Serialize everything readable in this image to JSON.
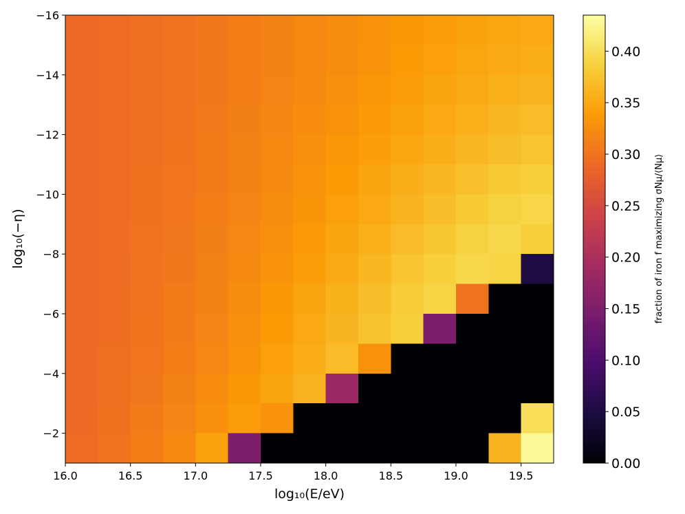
{
  "chart_data": {
    "type": "heatmap",
    "xlabel": "log₁₀(E/eV)",
    "ylabel": "log₁₀(−η)",
    "colorbar_label": "fraction of iron f maximizing σNμ/⟨Nμ⟩",
    "xlim": [
      16.0,
      19.75
    ],
    "ylim": [
      -1,
      -16
    ],
    "zlim": [
      0,
      0.435
    ],
    "xticks": [
      {
        "value": 16.0,
        "label": "16.0"
      },
      {
        "value": 16.5,
        "label": "16.5"
      },
      {
        "value": 17.0,
        "label": "17.0"
      },
      {
        "value": 17.5,
        "label": "17.5"
      },
      {
        "value": 18.0,
        "label": "18.0"
      },
      {
        "value": 18.5,
        "label": "18.5"
      },
      {
        "value": 19.0,
        "label": "19.0"
      },
      {
        "value": 19.5,
        "label": "19.5"
      }
    ],
    "yticks": [
      {
        "value": -16,
        "label": "−16"
      },
      {
        "value": -14,
        "label": "−14"
      },
      {
        "value": -12,
        "label": "−12"
      },
      {
        "value": -10,
        "label": "−10"
      },
      {
        "value": -8,
        "label": "−8"
      },
      {
        "value": -6,
        "label": "−6"
      },
      {
        "value": -4,
        "label": "−4"
      },
      {
        "value": -2,
        "label": "−2"
      }
    ],
    "zticks": [
      {
        "value": 0,
        "label": "0.00"
      },
      {
        "value": 0.05,
        "label": "0.05"
      },
      {
        "value": 0.1,
        "label": "0.10"
      },
      {
        "value": 0.15,
        "label": "0.15"
      },
      {
        "value": 0.2,
        "label": "0.20"
      },
      {
        "value": 0.25,
        "label": "0.25"
      },
      {
        "value": 0.3,
        "label": "0.30"
      },
      {
        "value": 0.35,
        "label": "0.35"
      },
      {
        "value": 0.4,
        "label": "0.40"
      }
    ],
    "colormap": [
      "#000004",
      "#1b0c41",
      "#4a0c6b",
      "#781c6d",
      "#a52c60",
      "#cf4446",
      "#ed6925",
      "#fb9b06",
      "#f7d13d",
      "#fcffa4"
    ],
    "xbins": [
      16.0,
      16.25,
      16.5,
      16.75,
      17.0,
      17.25,
      17.5,
      17.75,
      18.0,
      18.25,
      18.5,
      18.75,
      19.0,
      19.25,
      19.5,
      19.75
    ],
    "ybins": [
      -16,
      -15,
      -14,
      -13,
      -12,
      -11,
      -10,
      -9,
      -8,
      -7,
      -6,
      -5,
      -4,
      -3,
      -2,
      -1
    ],
    "values": [
      [
        0.29,
        0.292,
        0.297,
        0.3,
        0.305,
        0.31,
        0.315,
        0.32,
        0.325,
        0.33,
        0.335,
        0.34,
        0.345,
        0.348,
        0.35
      ],
      [
        0.29,
        0.292,
        0.297,
        0.3,
        0.305,
        0.31,
        0.315,
        0.32,
        0.325,
        0.332,
        0.338,
        0.343,
        0.348,
        0.352,
        0.355
      ],
      [
        0.29,
        0.292,
        0.297,
        0.3,
        0.305,
        0.31,
        0.316,
        0.322,
        0.328,
        0.334,
        0.34,
        0.346,
        0.352,
        0.357,
        0.36
      ],
      [
        0.29,
        0.292,
        0.297,
        0.3,
        0.306,
        0.312,
        0.318,
        0.324,
        0.33,
        0.337,
        0.344,
        0.35,
        0.357,
        0.363,
        0.367
      ],
      [
        0.29,
        0.292,
        0.297,
        0.301,
        0.307,
        0.313,
        0.32,
        0.327,
        0.334,
        0.341,
        0.349,
        0.356,
        0.364,
        0.37,
        0.375
      ],
      [
        0.29,
        0.292,
        0.298,
        0.302,
        0.308,
        0.315,
        0.322,
        0.33,
        0.338,
        0.346,
        0.355,
        0.364,
        0.372,
        0.38,
        0.385
      ],
      [
        0.29,
        0.293,
        0.298,
        0.303,
        0.31,
        0.317,
        0.325,
        0.333,
        0.342,
        0.351,
        0.36,
        0.37,
        0.38,
        0.388,
        0.392
      ],
      [
        0.29,
        0.293,
        0.299,
        0.304,
        0.311,
        0.319,
        0.328,
        0.337,
        0.347,
        0.357,
        0.367,
        0.378,
        0.388,
        0.393,
        0.385
      ],
      [
        0.29,
        0.293,
        0.3,
        0.305,
        0.313,
        0.322,
        0.331,
        0.341,
        0.352,
        0.363,
        0.375,
        0.386,
        0.393,
        0.39,
        0.05
      ],
      [
        0.29,
        0.294,
        0.3,
        0.307,
        0.315,
        0.325,
        0.335,
        0.346,
        0.358,
        0.37,
        0.382,
        0.39,
        0.3,
        0,
        0
      ],
      [
        0.29,
        0.294,
        0.301,
        0.308,
        0.317,
        0.327,
        0.338,
        0.35,
        0.362,
        0.374,
        0.385,
        0.15,
        0,
        0,
        0
      ],
      [
        0.29,
        0.295,
        0.302,
        0.31,
        0.319,
        0.33,
        0.342,
        0.354,
        0.367,
        0.33,
        0,
        0,
        0,
        0,
        0
      ],
      [
        0.29,
        0.296,
        0.304,
        0.313,
        0.323,
        0.335,
        0.347,
        0.36,
        0.18,
        0,
        0,
        0,
        0,
        0,
        0
      ],
      [
        0.291,
        0.298,
        0.307,
        0.317,
        0.328,
        0.34,
        0.33,
        0,
        0,
        0,
        0,
        0,
        0,
        0,
        0.4
      ],
      [
        0.292,
        0.3,
        0.31,
        0.321,
        0.345,
        0.15,
        0,
        0,
        0,
        0,
        0,
        0,
        0,
        0.36,
        0.43
      ]
    ]
  }
}
